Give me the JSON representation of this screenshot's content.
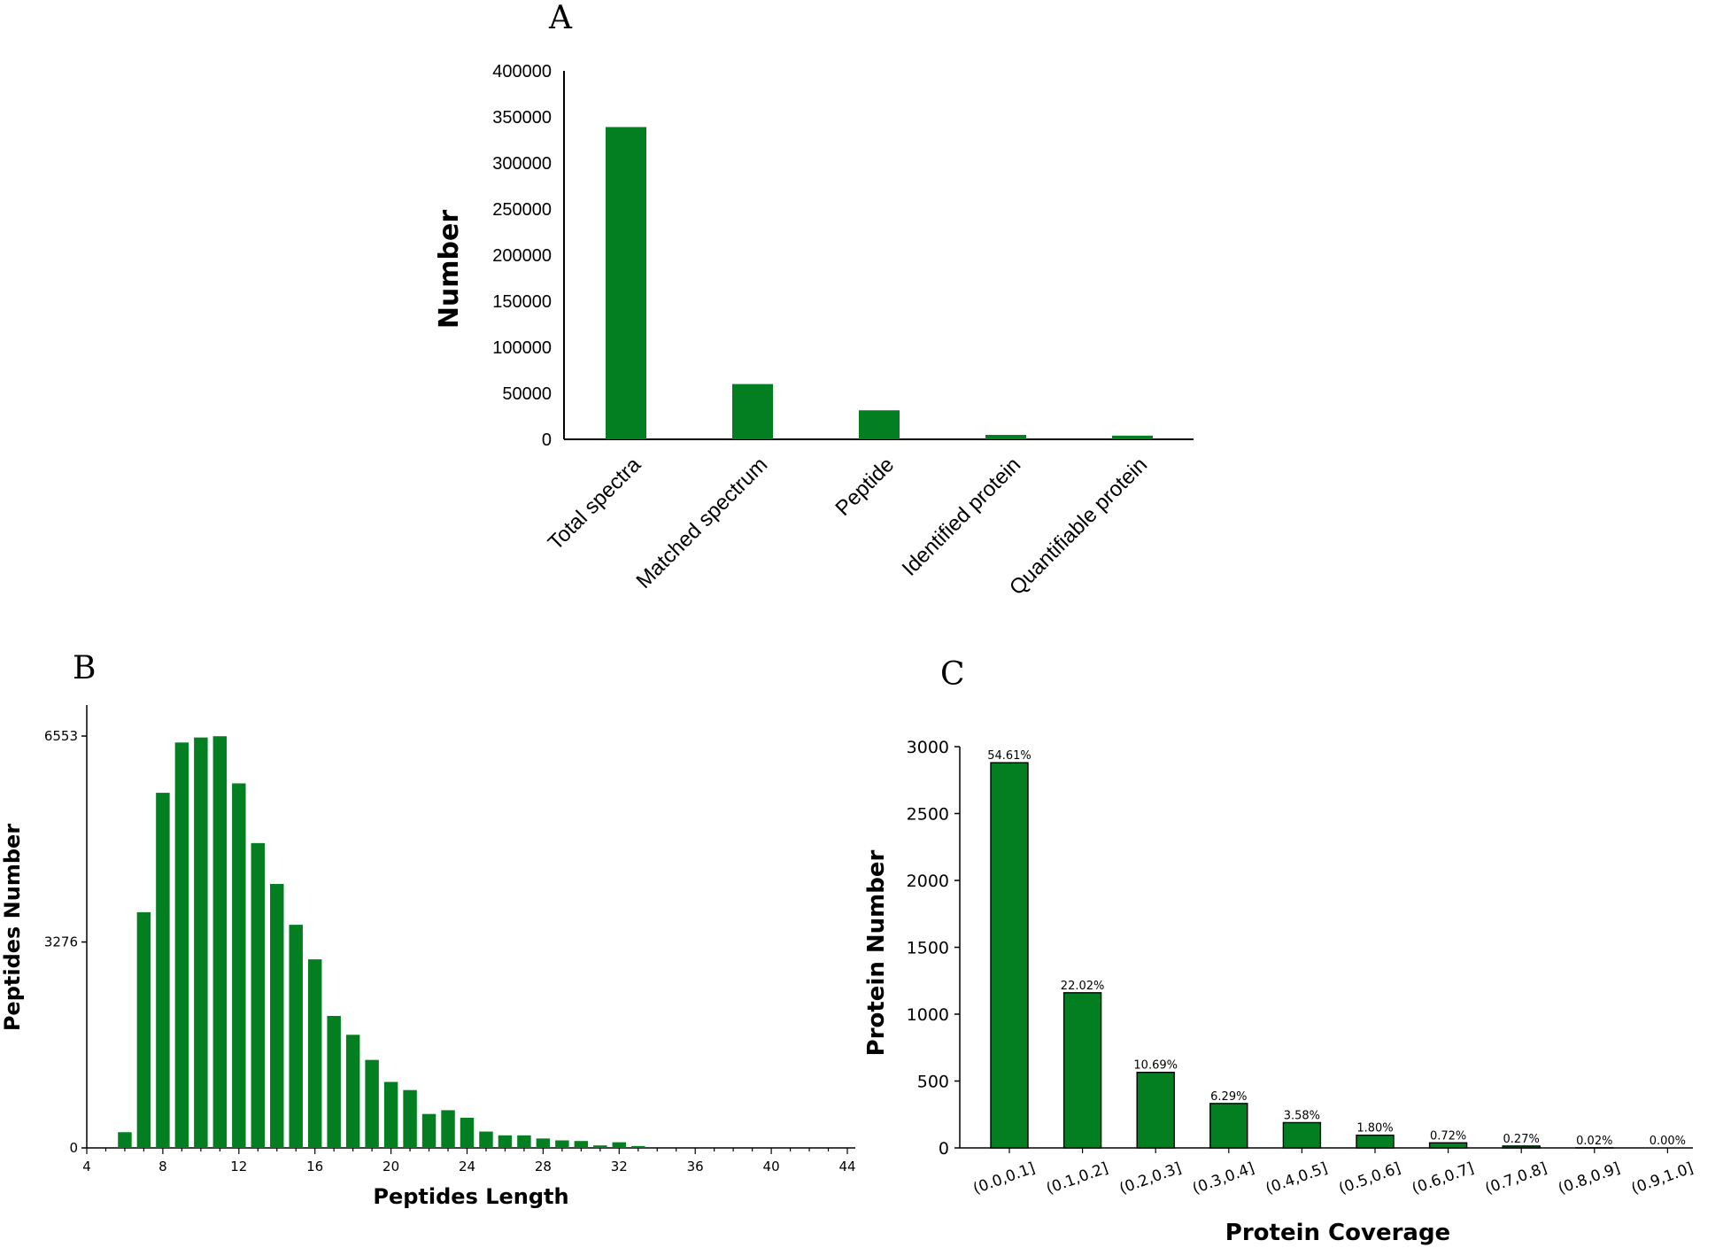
{
  "figure": {
    "label_a": "A",
    "label_b": "B",
    "label_c": "C",
    "bar_color": "#037f22"
  },
  "chart_data": [
    {
      "id": "A",
      "type": "bar",
      "categories": [
        "Total spectra",
        "Matched spectrum",
        "Peptide",
        "Identified protein",
        "Quantifiable protein"
      ],
      "values": [
        339000,
        60000,
        31500,
        4800,
        4000
      ],
      "ylabel": "Number",
      "xlabel": "",
      "ylim": [
        0,
        400000
      ],
      "yticks": [
        0,
        50000,
        100000,
        150000,
        200000,
        250000,
        300000,
        350000,
        400000
      ],
      "ytick_labels": [
        "0",
        "50000",
        "100000",
        "150000",
        "200000",
        "250000",
        "300000",
        "350000",
        "400000"
      ]
    },
    {
      "id": "B",
      "type": "bar",
      "xlabel": "Peptides Length",
      "ylabel": "Peptides Number",
      "x": [
        6,
        7,
        8,
        9,
        10,
        11,
        12,
        13,
        14,
        15,
        16,
        17,
        18,
        19,
        20,
        21,
        22,
        23,
        24,
        25,
        26,
        27,
        28,
        29,
        30,
        31,
        32,
        33
      ],
      "values": [
        250,
        3750,
        5650,
        6450,
        6530,
        6550,
        5800,
        4850,
        4200,
        3550,
        3000,
        2100,
        1800,
        1400,
        1050,
        920,
        540,
        600,
        480,
        260,
        200,
        200,
        150,
        120,
        110,
        40,
        90,
        30
      ],
      "xlim": [
        4,
        44
      ],
      "ylim": [
        0,
        6553
      ],
      "xticks": [
        4,
        8,
        12,
        16,
        20,
        24,
        28,
        32,
        36,
        40,
        44
      ],
      "xtick_labels": [
        "4",
        "8",
        "12",
        "16",
        "20",
        "24",
        "28",
        "32",
        "36",
        "40",
        "44"
      ],
      "yticks": [
        0,
        3276,
        6553
      ],
      "ytick_labels": [
        "0",
        "3276",
        "6553"
      ]
    },
    {
      "id": "C",
      "type": "bar",
      "xlabel": "Protein Coverage",
      "ylabel": "Protein Number",
      "categories": [
        "(0.0,0.1]",
        "(0.1,0.2]",
        "(0.2,0.3]",
        "(0.3,0.4]",
        "(0.4,0.5]",
        "(0.5,0.6]",
        "(0.6,0.7]",
        "(0.7,0.8]",
        "(0.8,0.9]",
        "(0.9,1.0]"
      ],
      "values": [
        2880,
        1160,
        565,
        332,
        189,
        95,
        38,
        14,
        1,
        0
      ],
      "percent_labels": [
        "54.61%",
        "22.02%",
        "10.69%",
        "6.29%",
        "3.58%",
        "1.80%",
        "0.72%",
        "0.27%",
        "0.02%",
        "0.00%"
      ],
      "ylim": [
        0,
        3000
      ],
      "yticks": [
        0,
        500,
        1000,
        1500,
        2000,
        2500,
        3000
      ],
      "ytick_labels": [
        "0",
        "500",
        "1000",
        "1500",
        "2000",
        "2500",
        "3000"
      ]
    }
  ]
}
